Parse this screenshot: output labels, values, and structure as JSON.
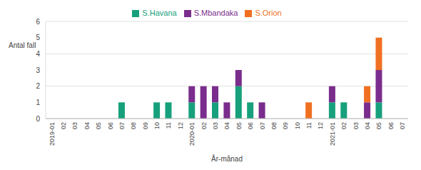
{
  "chart_data": {
    "type": "bar",
    "stacked": true,
    "grid": true,
    "legend": "top",
    "x_label": "År-månad",
    "y_label": "Antal fall",
    "categories": [
      "2019-01",
      "02",
      "03",
      "04",
      "05",
      "06",
      "07",
      "08",
      "09",
      "10",
      "11",
      "12",
      "2020-01",
      "02",
      "03",
      "04",
      "05",
      "06",
      "07",
      "08",
      "09",
      "10",
      "11",
      "12",
      "2021-01",
      "02",
      "03",
      "04",
      "05",
      "06",
      "07"
    ],
    "ylim": [
      0,
      6
    ],
    "yticks": [
      0,
      1,
      2,
      3,
      4,
      5,
      6
    ],
    "series": [
      {
        "name": "S.Havana",
        "color": "#17a07c",
        "values": [
          0,
          0,
          0,
          0,
          0,
          0,
          1,
          0,
          0,
          1,
          1,
          0,
          1,
          0,
          1,
          0,
          2,
          1,
          0,
          0,
          0,
          0,
          0,
          0,
          1,
          1,
          0,
          0,
          1,
          0,
          0
        ]
      },
      {
        "name": "S.Mbandaka",
        "color": "#7a2d8c",
        "values": [
          0,
          0,
          0,
          0,
          0,
          0,
          0,
          0,
          0,
          0,
          0,
          0,
          1,
          2,
          1,
          1,
          1,
          0,
          1,
          0,
          0,
          0,
          0,
          0,
          1,
          0,
          0,
          1,
          2,
          0,
          0
        ]
      },
      {
        "name": "S.Orion",
        "color": "#f07022",
        "values": [
          0,
          0,
          0,
          0,
          0,
          0,
          0,
          0,
          0,
          0,
          0,
          0,
          0,
          0,
          0,
          0,
          0,
          0,
          0,
          0,
          0,
          0,
          1,
          0,
          0,
          0,
          0,
          1,
          2,
          0,
          0
        ]
      }
    ]
  }
}
